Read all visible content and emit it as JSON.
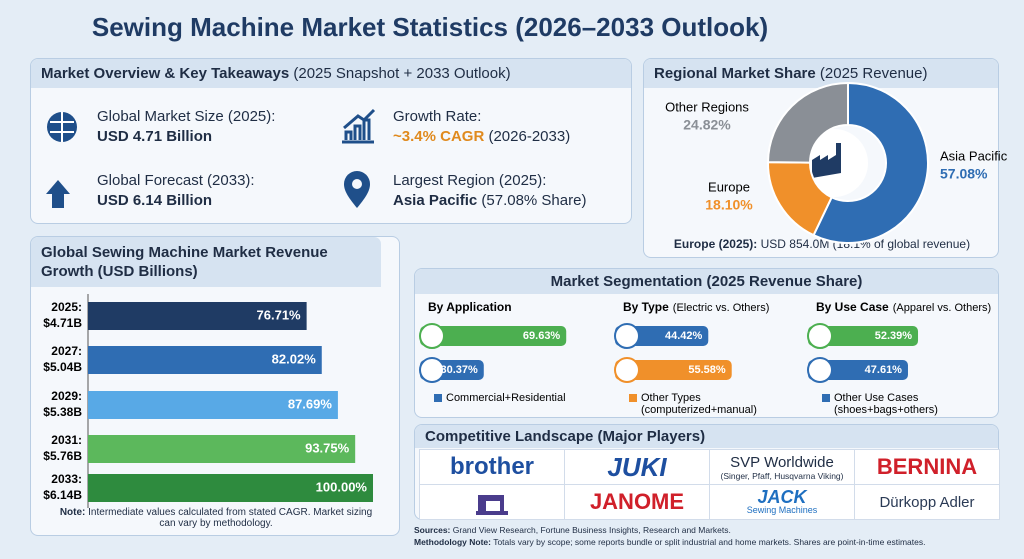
{
  "title": "Sewing Machine Market Statistics (2026–2033 Outlook)",
  "overview": {
    "heading": "Market Overview & Key Takeaways",
    "heading_note": "(2025 Snapshot + 2033 Outlook)",
    "items": [
      {
        "label": "Global Market Size (2025):",
        "value": "USD 4.71 Billion"
      },
      {
        "label": "Growth Rate:",
        "value": "~3.4% CAGR",
        "note": "(2026-2033)"
      },
      {
        "label": "Global Forecast (2033):",
        "value": "USD 6.14 Billion"
      },
      {
        "label": "Largest Region (2025):",
        "value": "Asia Pacific",
        "note": "(57.08% Share)"
      }
    ]
  },
  "segmentation_heading": "Market Segmentation (2025 Revenue Share)",
  "chart_data": [
    {
      "type": "pie",
      "title": "Regional Market Share",
      "subtitle": "(2025 Revenue)",
      "categories": [
        "Asia Pacific",
        "Europe",
        "Other Regions"
      ],
      "values": [
        57.08,
        18.1,
        24.82
      ],
      "value_labels": [
        "57.08%",
        "18.10%",
        "24.82%"
      ],
      "colors": [
        "#2f6db3",
        "#f0902a",
        "#8a8f96"
      ],
      "note_label": "Europe (2025):",
      "note": "USD 854.0M (18.1% of global revenue)"
    },
    {
      "type": "bar",
      "title": "Global Sewing Machine Market Revenue Growth (USD Billions)",
      "categories": [
        "2025:",
        "2027:",
        "2029:",
        "2031:",
        "2033:"
      ],
      "sublabels": [
        "$4.71B",
        "$5.04B",
        "$5.38B",
        "$5.76B",
        "$6.14B"
      ],
      "values": [
        76.71,
        82.02,
        87.69,
        93.75,
        100
      ],
      "value_labels": [
        "76.71%",
        "82.02%",
        "87.69%",
        "93.75%",
        "100.00%"
      ],
      "colors": [
        "#1f3b64",
        "#2f6db3",
        "#58a9e6",
        "#5cb85c",
        "#2e8b3e"
      ],
      "note_label": "Note:",
      "note": "Intermediate values calculated from stated CAGR. Market sizing can vary by methodology."
    },
    {
      "type": "segment",
      "title": "By Application",
      "values": [
        69.63,
        30.37
      ],
      "value_labels": [
        "69.63%",
        "30.37%"
      ],
      "colors": [
        "#4caf50",
        "#2f6db3"
      ],
      "legend_label": "Commercial+Residential",
      "legend_color": "#2f6db3"
    },
    {
      "type": "segment",
      "title": "By Type",
      "subtitle": "(Electric vs. Others)",
      "values": [
        44.42,
        55.58
      ],
      "value_labels": [
        "44.42%",
        "55.58%"
      ],
      "colors": [
        "#2f6db3",
        "#f0902a"
      ],
      "legend_label": "Other Types",
      "legend_note": "(computerized+manual)",
      "legend_color": "#f0902a"
    },
    {
      "type": "segment",
      "title": "By Use Case",
      "subtitle": "(Apparel vs. Others)",
      "values": [
        52.39,
        47.61
      ],
      "value_labels": [
        "52.39%",
        "47.61%"
      ],
      "colors": [
        "#4caf50",
        "#2f6db3"
      ],
      "legend_label": "Other Use Cases",
      "legend_note": "(shoes+bags+others)",
      "legend_color": "#2f6db3"
    }
  ],
  "competitive": {
    "heading": "Competitive Landscape (Major Players)",
    "players": [
      {
        "name": "brother"
      },
      {
        "name": "JUKI"
      },
      {
        "name": "SVP Worldwide",
        "note": "(Singer, Pfaff, Husqvarna Viking)"
      },
      {
        "name": "BERNINA"
      },
      {
        "name": "JANOME"
      },
      {
        "name": "JACK",
        "note": "Sewing Machines"
      },
      {
        "name": "Dürkopp Adler"
      }
    ]
  },
  "sources": {
    "label": "Sources:",
    "text": "Grand View Research, Fortune Business Insights, Research and Markets."
  },
  "methodology": {
    "label": "Methodology Note:",
    "text": "Totals vary by scope; some reports bundle or split industrial and home markets. Shares are point-in-time estimates."
  }
}
